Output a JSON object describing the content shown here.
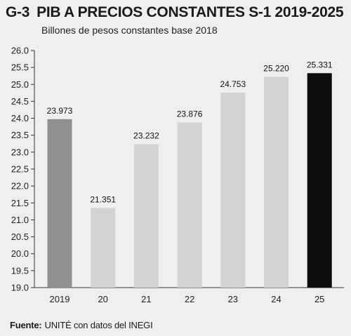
{
  "header": {
    "code": "G-3",
    "title": "PIB A PRECIOS CONSTANTES S-1 2019-2025",
    "subtitle": "Billones de pesos constantes base 2018"
  },
  "source": {
    "lead": "Fuente:",
    "text": "UNITÉ con datos del INEGI"
  },
  "chart_data": {
    "type": "bar",
    "title": "PIB A PRECIOS CONSTANTES S-1 2019-2025",
    "subtitle": "Billones de pesos constantes base 2018",
    "categories": [
      "2019",
      "20",
      "21",
      "22",
      "23",
      "24",
      "25"
    ],
    "values": [
      23.973,
      21.351,
      23.232,
      23.876,
      24.753,
      25.22,
      25.331
    ],
    "value_labels": [
      "23.973",
      "21.351",
      "23.232",
      "23.876",
      "24.753",
      "25.220",
      "25.331"
    ],
    "bar_colors": [
      "#909090",
      "#d3d3d3",
      "#d3d3d3",
      "#d3d3d3",
      "#d3d3d3",
      "#d3d3d3",
      "#0d0d0d"
    ],
    "ylim": [
      19.0,
      26.0
    ],
    "yticks": [
      "19.0",
      "19.5",
      "20.0",
      "20.5",
      "21.0",
      "21.5",
      "22.0",
      "22.5",
      "23.0",
      "23.5",
      "24.0",
      "24.5",
      "25.0",
      "25.5",
      "26.0"
    ],
    "grid": false,
    "xlabel": "",
    "ylabel": ""
  }
}
